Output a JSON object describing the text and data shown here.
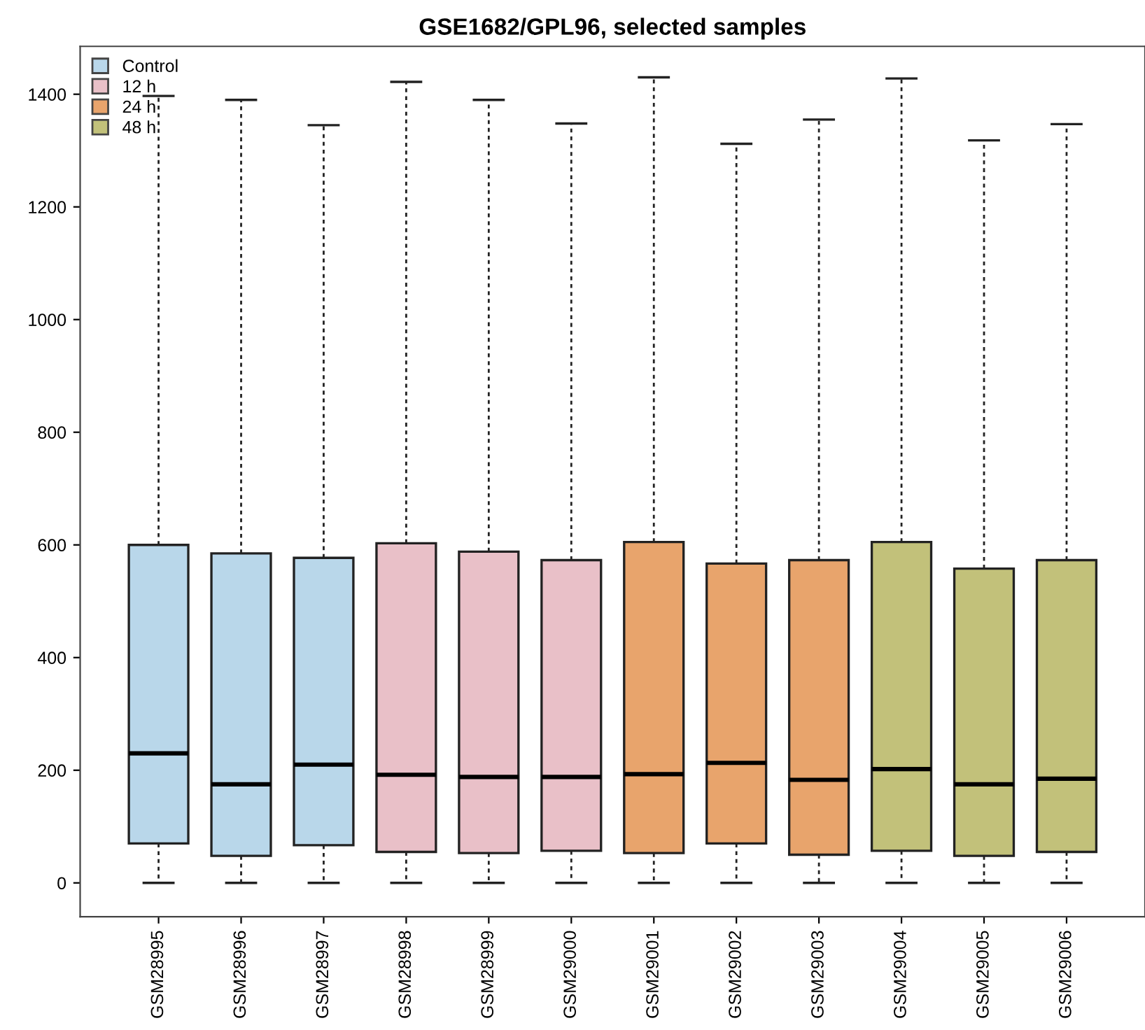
{
  "chart_data": {
    "type": "box",
    "title": "GSE1682/GPL96, selected samples",
    "categories": [
      "GSM28995",
      "GSM28996",
      "GSM28997",
      "GSM28998",
      "GSM28999",
      "GSM29000",
      "GSM29001",
      "GSM29002",
      "GSM29003",
      "GSM29004",
      "GSM29005",
      "GSM29006"
    ],
    "series": [
      {
        "name": "Control",
        "color": "#b9d7ea",
        "boxes": [
          {
            "low": 0,
            "q1": 70,
            "median": 230,
            "q3": 600,
            "high": 1397
          },
          {
            "low": 0,
            "q1": 48,
            "median": 175,
            "q3": 585,
            "high": 1390
          },
          {
            "low": 0,
            "q1": 67,
            "median": 210,
            "q3": 577,
            "high": 1345
          },
          null,
          null,
          null,
          null,
          null,
          null,
          null,
          null,
          null
        ]
      },
      {
        "name": "12 h",
        "color": "#e9c0c8",
        "boxes": [
          null,
          null,
          null,
          {
            "low": 0,
            "q1": 55,
            "median": 192,
            "q3": 603,
            "high": 1422
          },
          {
            "low": 0,
            "q1": 53,
            "median": 188,
            "q3": 588,
            "high": 1390
          },
          {
            "low": 0,
            "q1": 57,
            "median": 188,
            "q3": 573,
            "high": 1348
          },
          null,
          null,
          null,
          null,
          null,
          null
        ]
      },
      {
        "name": "24 h",
        "color": "#e8a46c",
        "boxes": [
          null,
          null,
          null,
          null,
          null,
          null,
          {
            "low": 0,
            "q1": 53,
            "median": 193,
            "q3": 605,
            "high": 1430
          },
          {
            "low": 0,
            "q1": 70,
            "median": 213,
            "q3": 567,
            "high": 1312
          },
          {
            "low": 0,
            "q1": 50,
            "median": 183,
            "q3": 573,
            "high": 1355
          },
          null,
          null,
          null
        ]
      },
      {
        "name": "48 h",
        "color": "#c2c17a",
        "boxes": [
          null,
          null,
          null,
          null,
          null,
          null,
          null,
          null,
          null,
          {
            "low": 0,
            "q1": 57,
            "median": 202,
            "q3": 605,
            "high": 1428
          },
          {
            "low": 0,
            "q1": 48,
            "median": 175,
            "q3": 558,
            "high": 1318
          },
          {
            "low": 0,
            "q1": 55,
            "median": 185,
            "q3": 573,
            "high": 1347
          }
        ]
      }
    ],
    "ylim": [
      -60,
      1485
    ],
    "yticks": [
      0,
      200,
      400,
      600,
      800,
      1000,
      1200,
      1400
    ],
    "legend": "top left",
    "grid": false
  }
}
